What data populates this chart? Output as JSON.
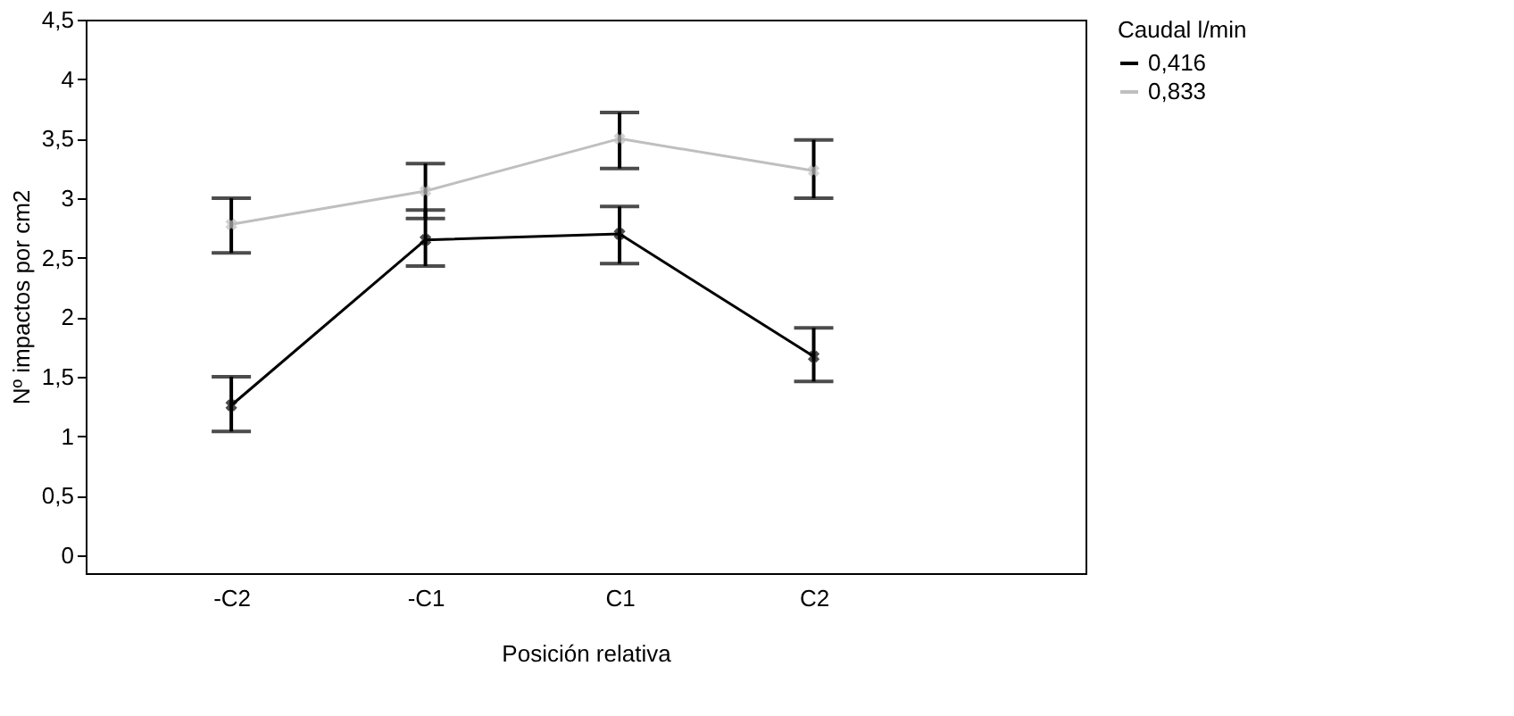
{
  "chart_data": {
    "type": "line",
    "xlabel": "Posición relativa",
    "ylabel": "Nº impactos por cm2",
    "legend_title": "Caudal l/min",
    "categories": [
      "-C2",
      "-C1",
      "C1",
      "C2"
    ],
    "series": [
      {
        "name": "0,416",
        "color": "#000000",
        "values": [
          1.26,
          2.65,
          2.7,
          1.67
        ],
        "errors": [
          [
            1.04,
            1.5
          ],
          [
            2.43,
            2.9
          ],
          [
            2.45,
            2.93
          ],
          [
            1.46,
            1.91
          ]
        ]
      },
      {
        "name": "0,833",
        "color": "#bfbfbf",
        "values": [
          2.78,
          3.06,
          3.5,
          3.23
        ],
        "errors": [
          [
            2.54,
            3.0
          ],
          [
            2.83,
            3.29
          ],
          [
            3.25,
            3.72
          ],
          [
            3.0,
            3.49
          ]
        ]
      }
    ],
    "ylim": [
      -0.15,
      4.5
    ],
    "yticks": [
      0,
      {
        "value": 0.5,
        "label": "0,5"
      },
      1,
      {
        "value": 1.5,
        "label": "1,5"
      },
      2,
      {
        "value": 2.5,
        "label": "2,5"
      },
      3,
      {
        "value": 3.5,
        "label": "3,5"
      },
      4,
      {
        "value": 4.5,
        "label": "4,5"
      }
    ],
    "marker": "cross",
    "grid": false,
    "legend": "top right"
  }
}
